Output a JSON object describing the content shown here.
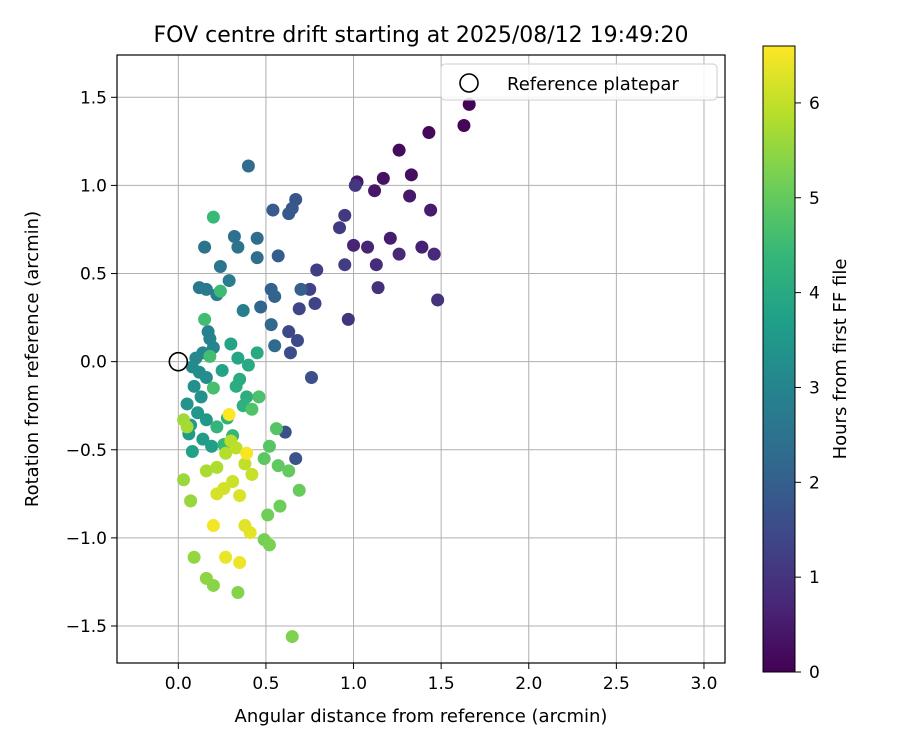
{
  "chart_data": {
    "type": "scatter",
    "title": "FOV centre drift starting at 2025/08/12 19:49:20",
    "xlabel": "Angular distance from reference (arcmin)",
    "ylabel": "Rotation from reference (arcmin)",
    "xlim": [
      -0.35,
      3.12
    ],
    "ylim": [
      -1.71,
      1.74
    ],
    "xticks": [
      0.0,
      0.5,
      1.0,
      1.5,
      2.0,
      2.5,
      3.0
    ],
    "xtick_labels": [
      "0.0",
      "0.5",
      "1.0",
      "1.5",
      "2.0",
      "2.5",
      "3.0"
    ],
    "yticks": [
      -1.5,
      -1.0,
      -0.5,
      0.0,
      0.5,
      1.0,
      1.5
    ],
    "ytick_labels": [
      "−1.5",
      "−1.0",
      "−0.5",
      "0.0",
      "0.5",
      "1.0",
      "1.5"
    ],
    "grid": true,
    "legend": {
      "position": "top-right",
      "entries": [
        "Reference platepar"
      ]
    },
    "reference": {
      "x": 0.0,
      "y": 0.0,
      "label": "Reference platepar"
    },
    "colorbar": {
      "label": "Hours from first FF file",
      "colormap": "viridis",
      "range": [
        0,
        6.6
      ],
      "ticks": [
        0,
        1,
        2,
        3,
        4,
        5,
        6
      ],
      "stops": [
        "#440154",
        "#482878",
        "#3e4989",
        "#31688e",
        "#26828e",
        "#1f9e89",
        "#35b779",
        "#6ece58",
        "#b5de2b",
        "#fde725"
      ]
    },
    "points": [
      {
        "x": 1.66,
        "y": 1.46,
        "h": 0.05
      },
      {
        "x": 1.63,
        "y": 1.34,
        "h": 0.1
      },
      {
        "x": 1.43,
        "y": 1.3,
        "h": 0.15
      },
      {
        "x": 1.26,
        "y": 1.2,
        "h": 0.2
      },
      {
        "x": 1.33,
        "y": 1.06,
        "h": 0.25
      },
      {
        "x": 1.17,
        "y": 1.04,
        "h": 0.3
      },
      {
        "x": 1.02,
        "y": 1.02,
        "h": 0.35
      },
      {
        "x": 1.12,
        "y": 0.97,
        "h": 0.4
      },
      {
        "x": 1.32,
        "y": 0.94,
        "h": 0.45
      },
      {
        "x": 1.44,
        "y": 0.86,
        "h": 0.5
      },
      {
        "x": 1.21,
        "y": 0.7,
        "h": 0.55
      },
      {
        "x": 1.39,
        "y": 0.65,
        "h": 0.6
      },
      {
        "x": 1.0,
        "y": 0.66,
        "h": 0.65
      },
      {
        "x": 1.08,
        "y": 0.65,
        "h": 0.7
      },
      {
        "x": 1.26,
        "y": 0.61,
        "h": 0.75
      },
      {
        "x": 1.46,
        "y": 0.61,
        "h": 0.8
      },
      {
        "x": 1.13,
        "y": 0.55,
        "h": 0.85
      },
      {
        "x": 1.14,
        "y": 0.42,
        "h": 0.9
      },
      {
        "x": 1.48,
        "y": 0.35,
        "h": 0.95
      },
      {
        "x": 0.97,
        "y": 0.24,
        "h": 1.0
      },
      {
        "x": 1.01,
        "y": 1.0,
        "h": 1.05
      },
      {
        "x": 0.95,
        "y": 0.83,
        "h": 1.1
      },
      {
        "x": 0.92,
        "y": 0.76,
        "h": 1.15
      },
      {
        "x": 0.95,
        "y": 0.55,
        "h": 1.2
      },
      {
        "x": 0.79,
        "y": 0.52,
        "h": 1.25
      },
      {
        "x": 0.75,
        "y": 0.41,
        "h": 1.3
      },
      {
        "x": 0.78,
        "y": 0.33,
        "h": 1.35
      },
      {
        "x": 0.69,
        "y": 0.3,
        "h": 1.4
      },
      {
        "x": 0.63,
        "y": 0.17,
        "h": 1.45
      },
      {
        "x": 0.68,
        "y": 0.12,
        "h": 1.5
      },
      {
        "x": 0.64,
        "y": 0.05,
        "h": 1.55
      },
      {
        "x": 0.76,
        "y": -0.09,
        "h": 1.6
      },
      {
        "x": 0.61,
        "y": -0.4,
        "h": 1.65
      },
      {
        "x": 0.67,
        "y": -0.55,
        "h": 1.7
      },
      {
        "x": 0.67,
        "y": 0.92,
        "h": 1.75
      },
      {
        "x": 0.65,
        "y": 0.87,
        "h": 1.8
      },
      {
        "x": 0.63,
        "y": 0.84,
        "h": 1.85
      },
      {
        "x": 0.54,
        "y": 0.86,
        "h": 1.9
      },
      {
        "x": 0.57,
        "y": 0.6,
        "h": 1.95
      },
      {
        "x": 0.7,
        "y": 0.41,
        "h": 2.0
      },
      {
        "x": 0.53,
        "y": 0.41,
        "h": 2.05
      },
      {
        "x": 0.55,
        "y": 0.37,
        "h": 2.1
      },
      {
        "x": 0.47,
        "y": 0.31,
        "h": 2.15
      },
      {
        "x": 0.53,
        "y": 0.21,
        "h": 2.2
      },
      {
        "x": 0.55,
        "y": 0.09,
        "h": 2.25
      },
      {
        "x": 0.4,
        "y": 1.11,
        "h": 2.3
      },
      {
        "x": 0.45,
        "y": 0.7,
        "h": 2.35
      },
      {
        "x": 0.45,
        "y": 0.59,
        "h": 2.4
      },
      {
        "x": 0.32,
        "y": 0.71,
        "h": 2.45
      },
      {
        "x": 0.34,
        "y": 0.65,
        "h": 2.5
      },
      {
        "x": 0.15,
        "y": 0.65,
        "h": 2.55
      },
      {
        "x": 0.24,
        "y": 0.54,
        "h": 2.6
      },
      {
        "x": 0.12,
        "y": 0.42,
        "h": 2.65
      },
      {
        "x": 0.16,
        "y": 0.41,
        "h": 2.7
      },
      {
        "x": 0.22,
        "y": 0.38,
        "h": 2.75
      },
      {
        "x": 0.29,
        "y": 0.46,
        "h": 2.8
      },
      {
        "x": 0.37,
        "y": 0.29,
        "h": 2.85
      },
      {
        "x": 0.17,
        "y": 0.17,
        "h": 2.9
      },
      {
        "x": 0.18,
        "y": 0.13,
        "h": 2.95
      },
      {
        "x": 0.2,
        "y": 0.08,
        "h": 3.0
      },
      {
        "x": 0.14,
        "y": 0.05,
        "h": 3.05
      },
      {
        "x": 0.1,
        "y": 0.02,
        "h": 3.1
      },
      {
        "x": 0.08,
        "y": -0.03,
        "h": 3.15
      },
      {
        "x": 0.12,
        "y": -0.06,
        "h": 3.2
      },
      {
        "x": 0.16,
        "y": -0.09,
        "h": 3.25
      },
      {
        "x": 0.09,
        "y": -0.14,
        "h": 3.3
      },
      {
        "x": 0.13,
        "y": -0.2,
        "h": 3.35
      },
      {
        "x": 0.05,
        "y": -0.24,
        "h": 3.4
      },
      {
        "x": 0.11,
        "y": -0.29,
        "h": 3.45
      },
      {
        "x": 0.16,
        "y": -0.33,
        "h": 3.5
      },
      {
        "x": 0.07,
        "y": -0.36,
        "h": 3.55
      },
      {
        "x": 0.06,
        "y": -0.41,
        "h": 3.6
      },
      {
        "x": 0.14,
        "y": -0.44,
        "h": 3.65
      },
      {
        "x": 0.19,
        "y": -0.48,
        "h": 3.7
      },
      {
        "x": 0.08,
        "y": -0.51,
        "h": 3.75
      },
      {
        "x": 0.25,
        "y": -0.05,
        "h": 3.8
      },
      {
        "x": 0.3,
        "y": 0.1,
        "h": 3.85
      },
      {
        "x": 0.34,
        "y": 0.02,
        "h": 3.9
      },
      {
        "x": 0.4,
        "y": -0.02,
        "h": 3.95
      },
      {
        "x": 0.45,
        "y": 0.05,
        "h": 4.0
      },
      {
        "x": 0.35,
        "y": -0.1,
        "h": 4.05
      },
      {
        "x": 0.33,
        "y": -0.14,
        "h": 4.1
      },
      {
        "x": 0.39,
        "y": -0.2,
        "h": 4.15
      },
      {
        "x": 0.37,
        "y": -0.25,
        "h": 4.2
      },
      {
        "x": 0.28,
        "y": -0.32,
        "h": 4.25
      },
      {
        "x": 0.22,
        "y": -0.37,
        "h": 4.3
      },
      {
        "x": 0.31,
        "y": -0.42,
        "h": 4.35
      },
      {
        "x": 0.26,
        "y": -0.47,
        "h": 4.4
      },
      {
        "x": 0.2,
        "y": 0.82,
        "h": 4.45
      },
      {
        "x": 0.24,
        "y": 0.4,
        "h": 4.5
      },
      {
        "x": 0.15,
        "y": 0.24,
        "h": 4.55
      },
      {
        "x": 0.18,
        "y": 0.03,
        "h": 4.6
      },
      {
        "x": 0.2,
        "y": -0.15,
        "h": 4.65
      },
      {
        "x": 0.46,
        "y": -0.2,
        "h": 4.7
      },
      {
        "x": 0.42,
        "y": -0.27,
        "h": 4.75
      },
      {
        "x": 0.56,
        "y": -0.38,
        "h": 4.8
      },
      {
        "x": 0.52,
        "y": -0.48,
        "h": 4.85
      },
      {
        "x": 0.49,
        "y": -0.55,
        "h": 4.9
      },
      {
        "x": 0.57,
        "y": -0.59,
        "h": 4.95
      },
      {
        "x": 0.63,
        "y": -0.62,
        "h": 5.0
      },
      {
        "x": 0.69,
        "y": -0.73,
        "h": 5.05
      },
      {
        "x": 0.58,
        "y": -0.82,
        "h": 5.1
      },
      {
        "x": 0.51,
        "y": -0.87,
        "h": 5.15
      },
      {
        "x": 0.49,
        "y": -1.01,
        "h": 5.2
      },
      {
        "x": 0.52,
        "y": -1.04,
        "h": 5.25
      },
      {
        "x": 0.65,
        "y": -1.56,
        "h": 5.3
      },
      {
        "x": 0.34,
        "y": -1.31,
        "h": 5.35
      },
      {
        "x": 0.2,
        "y": -1.27,
        "h": 5.4
      },
      {
        "x": 0.16,
        "y": -1.23,
        "h": 5.45
      },
      {
        "x": 0.09,
        "y": -1.11,
        "h": 5.5
      },
      {
        "x": 0.07,
        "y": -0.79,
        "h": 5.55
      },
      {
        "x": 0.03,
        "y": -0.67,
        "h": 5.6
      },
      {
        "x": 0.03,
        "y": -0.33,
        "h": 5.65
      },
      {
        "x": 0.05,
        "y": -0.37,
        "h": 5.7
      },
      {
        "x": 0.16,
        "y": -0.62,
        "h": 5.75
      },
      {
        "x": 0.22,
        "y": -0.6,
        "h": 5.8
      },
      {
        "x": 0.27,
        "y": -0.52,
        "h": 5.85
      },
      {
        "x": 0.3,
        "y": -0.45,
        "h": 5.9
      },
      {
        "x": 0.33,
        "y": -0.49,
        "h": 5.95
      },
      {
        "x": 0.38,
        "y": -0.58,
        "h": 6.0
      },
      {
        "x": 0.42,
        "y": -0.64,
        "h": 6.05
      },
      {
        "x": 0.31,
        "y": -0.68,
        "h": 6.1
      },
      {
        "x": 0.26,
        "y": -0.72,
        "h": 6.15
      },
      {
        "x": 0.22,
        "y": -0.75,
        "h": 6.2
      },
      {
        "x": 0.35,
        "y": -0.76,
        "h": 6.25
      },
      {
        "x": 0.38,
        "y": -0.93,
        "h": 6.3
      },
      {
        "x": 0.41,
        "y": -0.97,
        "h": 6.35
      },
      {
        "x": 0.27,
        "y": -1.11,
        "h": 6.4
      },
      {
        "x": 0.35,
        "y": -1.14,
        "h": 6.45
      },
      {
        "x": 0.2,
        "y": -0.93,
        "h": 6.5
      },
      {
        "x": 0.39,
        "y": -0.52,
        "h": 6.55
      },
      {
        "x": 0.29,
        "y": -0.3,
        "h": 6.6
      }
    ]
  }
}
